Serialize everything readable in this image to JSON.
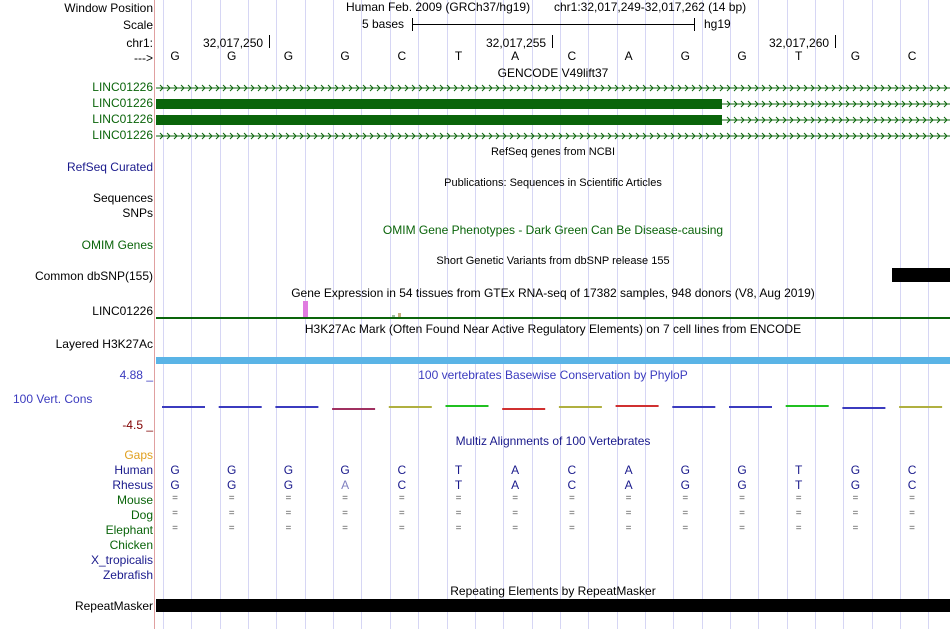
{
  "header": {
    "window_position_label": "Window Position",
    "scale_label": "Scale",
    "chrom_label": "chr1:",
    "strand_label": "--->",
    "assembly": "Human Feb. 2009 (GRCh37/hg19)",
    "position": "chr1:32,017,249-32,017,262 (14 bp)",
    "scale_text": "5 bases",
    "db": "hg19",
    "coords": [
      "32,017,250",
      "32,017,255",
      "32,017,260"
    ]
  },
  "bases": [
    "G",
    "G",
    "G",
    "G",
    "C",
    "T",
    "A",
    "C",
    "A",
    "G",
    "G",
    "T",
    "G",
    "C"
  ],
  "tracks": {
    "gencode_title": "GENCODE V49lift37",
    "gencode_labels": [
      "LINC01226",
      "LINC01226",
      "LINC01226",
      "LINC01226"
    ],
    "refseq_label": "RefSeq Curated",
    "refseq_title": "RefSeq genes from NCBI",
    "pubs_title": "Publications: Sequences in Scientific Articles",
    "sequences_label": "Sequences",
    "snps_label": "SNPs",
    "omim_title": "OMIM Gene Phenotypes - Dark Green Can Be Disease-causing",
    "omim_label": "OMIM Genes",
    "dbsnp_title": "Short Genetic Variants from dbSNP release 155",
    "dbsnp_label": "Common dbSNP(155)",
    "gtex_title": "Gene Expression in 54 tissues from GTEx RNA-seq of 17382 samples, 948 donors (V8, Aug 2019)",
    "gtex_label": "LINC01226",
    "h3k27_title": "H3K27Ac Mark (Often Found Near Active Regulatory Elements) on 7 cell lines from ENCODE",
    "h3k27_label": "Layered H3K27Ac",
    "cons_title": "100 vertebrates Basewise Conservation by PhyloP",
    "cons_label": "100 Vert. Cons",
    "cons_max": "4.88 _",
    "cons_min": "-4.5 _",
    "multiz_title": "Multiz Alignments of 100 Vertebrates",
    "repeat_title": "Repeating Elements by RepeatMasker",
    "repeat_label": "RepeatMasker"
  },
  "multiz": {
    "gaps_label": "Gaps",
    "species": [
      "Human",
      "Rhesus",
      "Mouse",
      "Dog",
      "Elephant",
      "Chicken",
      "X_tropicalis",
      "Zebrafish"
    ],
    "rhesus": [
      "G",
      "G",
      "G",
      "A",
      "C",
      "T",
      "A",
      "C",
      "A",
      "G",
      "G",
      "T",
      "G",
      "C"
    ],
    "mouse": [
      "=",
      "=",
      "=",
      "=",
      "=",
      "=",
      "=",
      "=",
      "=",
      "=",
      "=",
      "=",
      "=",
      "="
    ],
    "dog": [
      "=",
      "=",
      "=",
      "=",
      "=",
      "=",
      "=",
      "=",
      "=",
      "=",
      "=",
      "=",
      "=",
      "="
    ],
    "elephant": [
      "=",
      "=",
      "=",
      "=",
      "=",
      "=",
      "=",
      "=",
      "=",
      "=",
      "=",
      "=",
      "=",
      "="
    ]
  },
  "colors": {
    "gene_green": "#0a640a",
    "nav_blue": "#1a1a8c",
    "cons_blue": "#3b3bbf",
    "h3k27_blue": "#5ab4e6",
    "gaps_orange": "#e0a020",
    "dark_green": "#0a640a",
    "min_red": "#800000"
  }
}
